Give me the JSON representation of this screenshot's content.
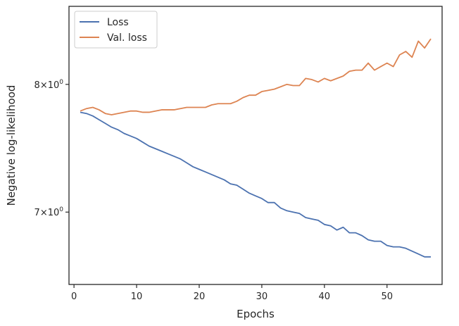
{
  "chart_data": {
    "type": "line",
    "xlabel": "Epochs",
    "ylabel": "Negative log-likelihood",
    "yscale": "log",
    "xlim": [
      -0.8,
      58.8
    ],
    "ylim": [
      6.49,
      8.68
    ],
    "grid": false,
    "legend_position": "top-left",
    "x_ticks": [
      {
        "value": 0,
        "label": "0"
      },
      {
        "value": 10,
        "label": "10"
      },
      {
        "value": 20,
        "label": "20"
      },
      {
        "value": 30,
        "label": "30"
      },
      {
        "value": 40,
        "label": "40"
      },
      {
        "value": 50,
        "label": "50"
      }
    ],
    "y_ticks": [
      {
        "value": 7,
        "base": "7",
        "mul": "×",
        "ten": "10",
        "exp": "0"
      },
      {
        "value": 8,
        "base": "8",
        "mul": "×",
        "ten": "10",
        "exp": "0"
      }
    ],
    "x": [
      1,
      2,
      3,
      4,
      5,
      6,
      7,
      8,
      9,
      10,
      11,
      12,
      13,
      14,
      15,
      16,
      17,
      18,
      19,
      20,
      21,
      22,
      23,
      24,
      25,
      26,
      27,
      28,
      29,
      30,
      31,
      32,
      33,
      34,
      35,
      36,
      37,
      38,
      39,
      40,
      41,
      42,
      43,
      44,
      45,
      46,
      47,
      48,
      49,
      50,
      51,
      52,
      53,
      54,
      55,
      56,
      57
    ],
    "series": [
      {
        "name": "Loss",
        "color": "#4c72b0",
        "values": [
          7.77,
          7.76,
          7.74,
          7.71,
          7.68,
          7.65,
          7.63,
          7.6,
          7.58,
          7.56,
          7.53,
          7.5,
          7.48,
          7.46,
          7.44,
          7.42,
          7.4,
          7.37,
          7.34,
          7.32,
          7.3,
          7.28,
          7.26,
          7.24,
          7.21,
          7.2,
          7.17,
          7.14,
          7.12,
          7.1,
          7.07,
          7.07,
          7.03,
          7.01,
          7.0,
          6.99,
          6.96,
          6.95,
          6.94,
          6.91,
          6.9,
          6.87,
          6.89,
          6.85,
          6.85,
          6.83,
          6.8,
          6.79,
          6.79,
          6.76,
          6.75,
          6.75,
          6.74,
          6.72,
          6.7,
          6.68,
          6.68
        ]
      },
      {
        "name": "Val. loss",
        "color": "#dd8452",
        "values": [
          7.78,
          7.8,
          7.81,
          7.79,
          7.76,
          7.75,
          7.76,
          7.77,
          7.78,
          7.78,
          7.77,
          7.77,
          7.78,
          7.79,
          7.79,
          7.79,
          7.8,
          7.81,
          7.81,
          7.81,
          7.81,
          7.83,
          7.84,
          7.84,
          7.84,
          7.86,
          7.89,
          7.91,
          7.91,
          7.94,
          7.95,
          7.96,
          7.98,
          8.0,
          7.99,
          7.99,
          8.05,
          8.04,
          8.02,
          8.05,
          8.03,
          8.05,
          8.07,
          8.11,
          8.12,
          8.12,
          8.18,
          8.12,
          8.15,
          8.18,
          8.15,
          8.25,
          8.28,
          8.23,
          8.37,
          8.31,
          8.39
        ]
      }
    ]
  }
}
